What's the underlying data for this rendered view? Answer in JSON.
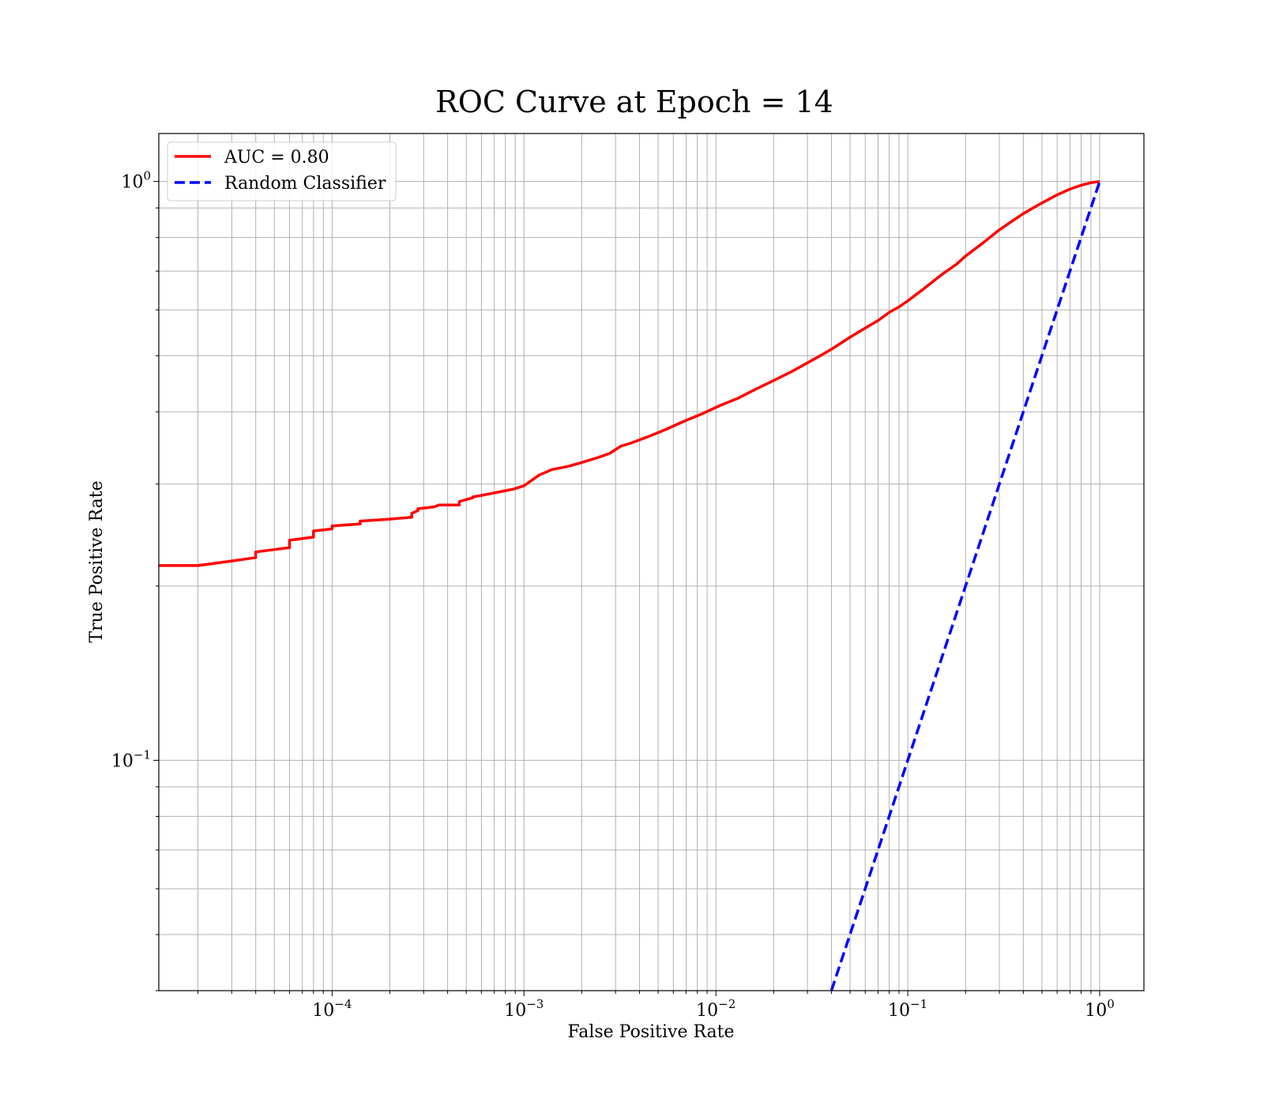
{
  "chart_data": {
    "type": "line",
    "title": "ROC Curve at Epoch = 14",
    "xlabel": "False Positive Rate",
    "ylabel": "True Positive Rate",
    "xscale": "log",
    "yscale": "log",
    "xlim": [
      1.25e-05,
      1.7
    ],
    "ylim": [
      0.04,
      1.21
    ],
    "grid": true,
    "legend_position": "top-left",
    "x_ticks": [
      {
        "base": "10",
        "exp": "−4",
        "value": 0.0001
      },
      {
        "base": "10",
        "exp": "−3",
        "value": 0.001
      },
      {
        "base": "10",
        "exp": "−2",
        "value": 0.01
      },
      {
        "base": "10",
        "exp": "−1",
        "value": 0.1
      },
      {
        "base": "10",
        "exp": "0",
        "value": 1
      }
    ],
    "y_ticks": [
      {
        "base": "10",
        "exp": "−1",
        "value": 0.1
      },
      {
        "base": "10",
        "exp": "0",
        "value": 1
      }
    ],
    "series": [
      {
        "name": "AUC = 0.80",
        "color": "#ff0000",
        "style": "solid",
        "x": [
          1.25e-05,
          2e-05,
          3e-05,
          4e-05,
          4e-05,
          6e-05,
          6e-05,
          8e-05,
          8e-05,
          0.0001,
          0.0001,
          0.00014,
          0.00014,
          0.0002,
          0.00026,
          0.00026,
          0.00028,
          0.00028,
          0.00034,
          0.00036,
          0.00046,
          0.00046,
          0.00054,
          0.00054,
          0.00064,
          0.00075,
          0.00088,
          0.001,
          0.0012,
          0.0014,
          0.0017,
          0.002,
          0.0024,
          0.0028,
          0.0032,
          0.0036,
          0.0045,
          0.0055,
          0.0068,
          0.0085,
          0.0105,
          0.013,
          0.016,
          0.02,
          0.025,
          0.03,
          0.035,
          0.04,
          0.05,
          0.06,
          0.07,
          0.08,
          0.09,
          0.1,
          0.12,
          0.15,
          0.18,
          0.2,
          0.25,
          0.3,
          0.4,
          0.5,
          0.6,
          0.7,
          0.8,
          0.9,
          1.0
        ],
        "y": [
          0.217,
          0.217,
          0.221,
          0.224,
          0.229,
          0.233,
          0.24,
          0.243,
          0.249,
          0.251,
          0.254,
          0.256,
          0.259,
          0.261,
          0.263,
          0.267,
          0.27,
          0.272,
          0.274,
          0.276,
          0.276,
          0.28,
          0.284,
          0.285,
          0.288,
          0.291,
          0.294,
          0.298,
          0.311,
          0.318,
          0.322,
          0.327,
          0.333,
          0.339,
          0.349,
          0.353,
          0.363,
          0.373,
          0.385,
          0.397,
          0.41,
          0.422,
          0.437,
          0.453,
          0.47,
          0.486,
          0.5,
          0.513,
          0.538,
          0.558,
          0.575,
          0.594,
          0.607,
          0.622,
          0.651,
          0.69,
          0.72,
          0.743,
          0.786,
          0.825,
          0.88,
          0.918,
          0.948,
          0.97,
          0.985,
          0.995,
          1.0
        ]
      },
      {
        "name": "Random Classifier",
        "color": "#0000ff",
        "style": "dashed",
        "x": [
          0.04,
          1.0
        ],
        "y": [
          0.04,
          1.0
        ]
      }
    ]
  }
}
